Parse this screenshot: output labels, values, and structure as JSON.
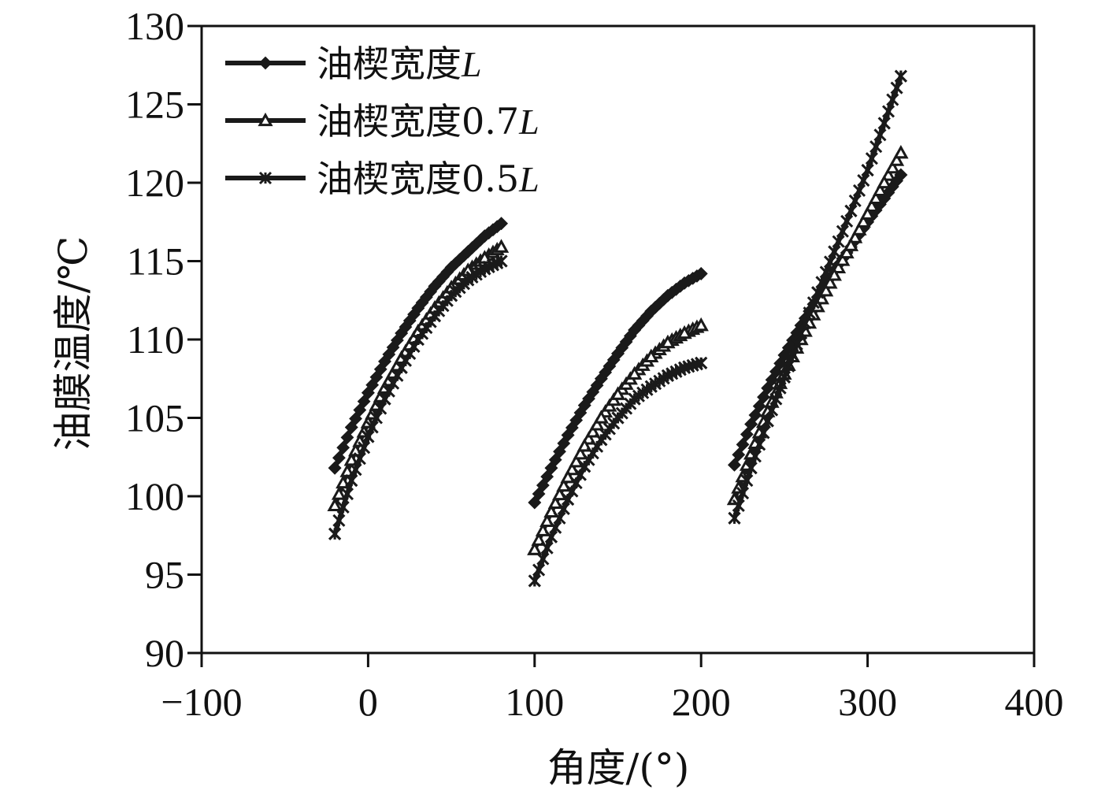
{
  "chart_data": {
    "type": "scatter",
    "title": "",
    "xlabel": "角度/(°)",
    "ylabel": "油膜温度/℃",
    "xlim": [
      -100,
      400
    ],
    "ylim": [
      90,
      130
    ],
    "xticks": [
      -100,
      0,
      100,
      200,
      300,
      400
    ],
    "xtick_labels": [
      "−100",
      "0",
      "100",
      "200",
      "300",
      "400"
    ],
    "yticks": [
      90,
      95,
      100,
      105,
      110,
      115,
      120,
      125,
      130
    ],
    "ytick_labels": [
      "90",
      "95",
      "100",
      "105",
      "110",
      "115",
      "120",
      "125",
      "130"
    ],
    "grid": false,
    "legend_position": "top-left",
    "series": [
      {
        "name": "油楔宽度L",
        "name_prefix": "油楔宽度",
        "name_suffix": "L",
        "marker": "diamond",
        "color": "#1a1a1a",
        "segments": [
          {
            "x": [
              -20,
              -10,
              0,
              10,
              20,
              30,
              40,
              50,
              60,
              70,
              80
            ],
            "y": [
              101.8,
              104.4,
              106.6,
              108.6,
              110.4,
              112.0,
              113.4,
              114.6,
              115.6,
              116.6,
              117.4
            ]
          },
          {
            "x": [
              100,
              110,
              120,
              130,
              140,
              150,
              160,
              170,
              180,
              190,
              200
            ],
            "y": [
              99.6,
              101.8,
              103.9,
              105.8,
              107.5,
              109.1,
              110.6,
              111.8,
              112.8,
              113.6,
              114.2
            ]
          },
          {
            "x": [
              220,
              230,
              240,
              250,
              260,
              270,
              280,
              290,
              300,
              310,
              320
            ],
            "y": [
              102.0,
              104.6,
              106.9,
              109.0,
              110.9,
              112.7,
              114.4,
              115.9,
              117.5,
              119.0,
              120.5
            ]
          }
        ]
      },
      {
        "name": "油楔宽度0.7L",
        "name_prefix": "油楔宽度0.7",
        "name_suffix": "L",
        "marker": "triangle",
        "color": "#1a1a1a",
        "segments": [
          {
            "x": [
              -20,
              -10,
              0,
              10,
              20,
              30,
              40,
              50,
              60,
              70,
              80
            ],
            "y": [
              99.4,
              102.3,
              104.7,
              106.9,
              108.8,
              110.5,
              112.0,
              113.3,
              114.4,
              115.2,
              115.9
            ]
          },
          {
            "x": [
              100,
              110,
              120,
              130,
              140,
              150,
              160,
              170,
              180,
              190,
              200
            ],
            "y": [
              96.6,
              99.0,
              101.2,
              103.2,
              105.0,
              106.5,
              107.8,
              108.9,
              109.8,
              110.4,
              110.9
            ]
          },
          {
            "x": [
              220,
              230,
              240,
              250,
              260,
              270,
              280,
              290,
              300,
              310,
              320
            ],
            "y": [
              99.8,
              102.7,
              105.4,
              107.8,
              110.0,
              112.1,
              114.1,
              116.0,
              118.0,
              120.0,
              121.9
            ]
          }
        ]
      },
      {
        "name": "油楔宽度0.5L",
        "name_prefix": "油楔宽度0.5",
        "name_suffix": "L",
        "marker": "x",
        "color": "#1a1a1a",
        "segments": [
          {
            "x": [
              -20,
              -10,
              0,
              10,
              20,
              30,
              40,
              50,
              60,
              70,
              80
            ],
            "y": [
              97.6,
              101.0,
              103.8,
              106.2,
              108.2,
              110.0,
              111.5,
              112.8,
              113.8,
              114.5,
              115.0
            ]
          },
          {
            "x": [
              100,
              110,
              120,
              130,
              140,
              150,
              160,
              170,
              180,
              190,
              200
            ],
            "y": [
              94.6,
              97.4,
              99.8,
              101.9,
              103.6,
              105.0,
              106.2,
              107.0,
              107.7,
              108.2,
              108.5
            ]
          },
          {
            "x": [
              220,
              230,
              240,
              250,
              260,
              270,
              280,
              290,
              300,
              310,
              320
            ],
            "y": [
              98.6,
              101.8,
              104.8,
              107.6,
              110.4,
              113.0,
              115.6,
              118.2,
              120.8,
              123.8,
              126.8
            ]
          }
        ]
      }
    ]
  }
}
